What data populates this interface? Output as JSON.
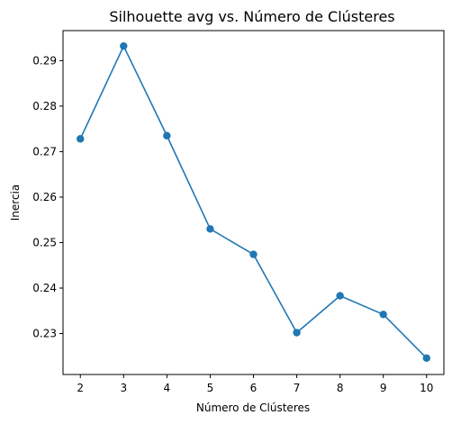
{
  "chart_data": {
    "type": "line",
    "title": "Silhouette avg vs. Número de Clústeres",
    "xlabel": "Número de Clústeres",
    "ylabel": "Inercia",
    "x": [
      2,
      3,
      4,
      5,
      6,
      7,
      8,
      9,
      10
    ],
    "y_ticks": [
      0.23,
      0.24,
      0.25,
      0.26,
      0.27,
      0.28,
      0.29
    ],
    "series": [
      {
        "values": [
          0.2728,
          0.2932,
          0.2735,
          0.253,
          0.2474,
          0.2302,
          0.2383,
          0.2342,
          0.2246
        ],
        "color": "#1f77b4",
        "marker": "circle"
      }
    ],
    "xlim": [
      1.6,
      10.4
    ],
    "ylim": [
      0.221,
      0.2966
    ],
    "grid": false,
    "legend": "none"
  }
}
